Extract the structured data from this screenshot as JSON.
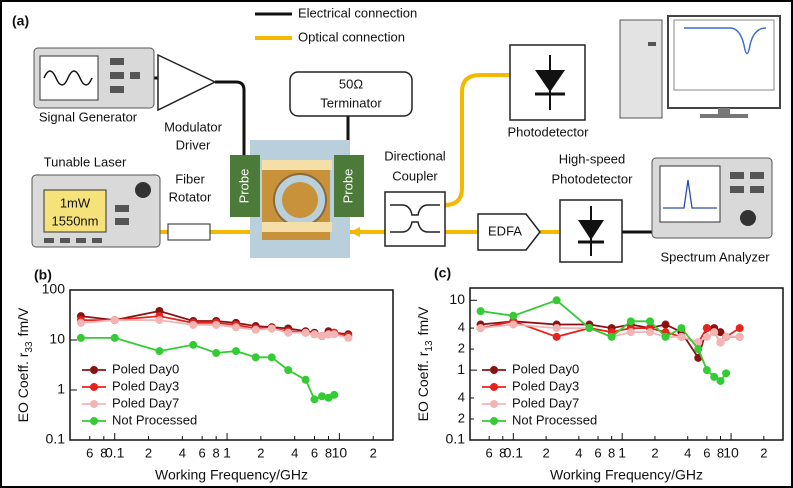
{
  "diagram": {
    "label": "(a)",
    "legend_electrical": "Electrical connection",
    "legend_optical": "Optical connection",
    "signal_generator": "Signal Generator",
    "modulator_driver": [
      "Modulator",
      "Driver"
    ],
    "terminator": [
      "50Ω",
      "Terminator"
    ],
    "photodetector": "Photodetector",
    "tunable_laser": "Tunable Laser",
    "laser_screen": [
      "1mW",
      "1550nm"
    ],
    "fiber_rotator": [
      "Fiber",
      "Rotator"
    ],
    "probe_left": "Probe",
    "probe_right": "Probe",
    "directional_coupler": [
      "Directional",
      "Coupler"
    ],
    "high_speed_photodetector": [
      "High-speed",
      "Photodetector"
    ],
    "edfa": "EDFA",
    "spectrum_analyzer": "Spectrum Analyzer"
  },
  "chart_data": [
    {
      "type": "line",
      "label": "(b)",
      "x_label": "Working Frequency/GHz",
      "y_label": "EO Coeff. r",
      "y_label_sub": "33",
      "y_label_unit": "fm/V",
      "xscale": "log",
      "yscale": "log",
      "xlim": [
        0.04,
        30
      ],
      "ylim": [
        0.1,
        100
      ],
      "xticks": [
        {
          "value": 0.06,
          "label": "6"
        },
        {
          "value": 0.08,
          "label": "8"
        },
        0.1,
        {
          "value": 0.2,
          "label": "2"
        },
        {
          "value": 0.4,
          "label": "4"
        },
        {
          "value": 0.6,
          "label": "6"
        },
        {
          "value": 0.8,
          "label": "8"
        },
        1,
        {
          "value": 2,
          "label": "2"
        },
        {
          "value": 4,
          "label": "4"
        },
        {
          "value": 6,
          "label": "6"
        },
        {
          "value": 8,
          "label": "8"
        },
        10,
        {
          "value": 20,
          "label": "2"
        }
      ],
      "yticks": [
        0.1,
        1,
        10,
        100
      ],
      "legend": "lower left",
      "x": [
        0.05,
        0.1,
        0.25,
        0.5,
        0.8,
        1.2,
        1.8,
        2.5,
        3.5,
        5,
        6,
        7,
        8,
        9,
        12
      ],
      "series": [
        {
          "name": "Poled Day0",
          "color": "#8b1212",
          "values": [
            30,
            25,
            38,
            24,
            24,
            22,
            19,
            18,
            17,
            15,
            14,
            12,
            15,
            14,
            13
          ]
        },
        {
          "name": "Poled Day3",
          "color": "#e8231e",
          "values": [
            25,
            25,
            30,
            22,
            22,
            20,
            17,
            17,
            15,
            14,
            13,
            12,
            13,
            14,
            12
          ]
        },
        {
          "name": "Poled Day7",
          "color": "#f4b4b4",
          "values": [
            22,
            25,
            25,
            20,
            20,
            18,
            16,
            17,
            14,
            14,
            13,
            12,
            13,
            13,
            11
          ]
        },
        {
          "name": "Not Processed",
          "color": "#33cc33",
          "values": [
            11,
            11,
            6,
            8,
            5.5,
            6,
            4.5,
            4.5,
            2.5,
            1.6,
            0.65,
            0.75,
            0.7,
            0.8,
            null
          ]
        }
      ]
    },
    {
      "type": "line",
      "label": "(c)",
      "x_label": "Working Frequency/GHz",
      "y_label": "EO Coeff. r",
      "y_label_sub": "13",
      "y_label_unit": "fm/V",
      "xscale": "log",
      "yscale": "log",
      "xlim": [
        0.04,
        30
      ],
      "ylim": [
        0.1,
        15
      ],
      "xticks": [
        {
          "value": 0.06,
          "label": "6"
        },
        {
          "value": 0.08,
          "label": "8"
        },
        0.1,
        {
          "value": 0.2,
          "label": "2"
        },
        {
          "value": 0.4,
          "label": "4"
        },
        {
          "value": 0.6,
          "label": "6"
        },
        {
          "value": 0.8,
          "label": "8"
        },
        1,
        {
          "value": 2,
          "label": "2"
        },
        {
          "value": 4,
          "label": "4"
        },
        {
          "value": 6,
          "label": "6"
        },
        {
          "value": 8,
          "label": "8"
        },
        10,
        {
          "value": 20,
          "label": "2"
        }
      ],
      "yticks": [
        0.1,
        {
          "value": 0.2,
          "label": "2"
        },
        {
          "value": 0.4,
          "label": "4"
        },
        1,
        {
          "value": 2,
          "label": "2"
        },
        {
          "value": 4,
          "label": "4"
        },
        10
      ],
      "legend": "lower left",
      "x": [
        0.05,
        0.1,
        0.25,
        0.5,
        0.8,
        1.2,
        1.8,
        2.5,
        3.5,
        5,
        6,
        7,
        8,
        9,
        12
      ],
      "series": [
        {
          "name": "Poled Day0",
          "color": "#8b1212",
          "values": [
            4.5,
            5,
            4.5,
            4.5,
            4,
            4.5,
            4,
            4.5,
            3.5,
            1.5,
            4,
            4,
            3.5,
            3,
            3
          ]
        },
        {
          "name": "Poled Day3",
          "color": "#e8231e",
          "values": [
            4,
            5,
            3,
            4,
            3.5,
            4,
            4,
            3.5,
            3,
            2.5,
            4,
            3.5,
            2.5,
            3,
            4
          ]
        },
        {
          "name": "Poled Day7",
          "color": "#f4b4b4",
          "values": [
            4,
            4.5,
            4,
            4,
            3,
            3.5,
            3.5,
            3,
            3,
            2.5,
            3,
            3.5,
            2.5,
            3,
            3
          ]
        },
        {
          "name": "Not Processed",
          "color": "#33cc33",
          "values": [
            7,
            6,
            10,
            4,
            3,
            5,
            5,
            3,
            4,
            2,
            1,
            0.8,
            0.7,
            0.9,
            null
          ]
        }
      ]
    }
  ]
}
